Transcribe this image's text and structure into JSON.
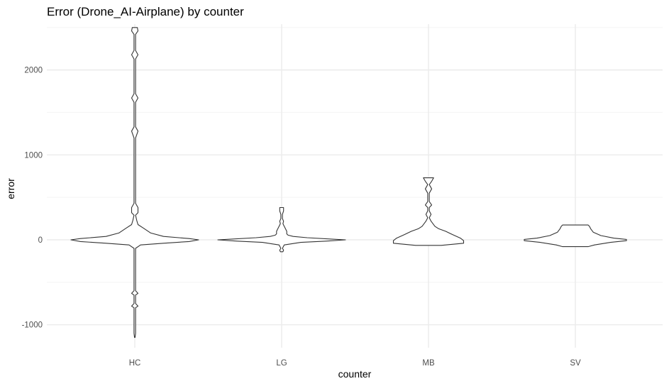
{
  "chart_data": {
    "type": "violin",
    "title": "Error (Drone_AI-Airplane) by counter",
    "xlabel": "counter",
    "ylabel": "error",
    "categories": [
      "HC",
      "LG",
      "MB",
      "SV"
    ],
    "ylim": [
      -1270,
      2540
    ],
    "yticks": [
      -1000,
      0,
      1000,
      2000
    ],
    "yticklabels": [
      "-1000",
      "0",
      "1000",
      "2000"
    ],
    "grid": true,
    "legend": "none",
    "colors": {
      "outline": "#333333",
      "fill": "#ffffff",
      "grid_major": "#ebebeb",
      "grid_minor": "#f5f5f5",
      "tick_text": "#4d4d4d"
    },
    "violins": [
      {
        "category": "HC",
        "min": -1150,
        "max": 2500,
        "profile": [
          [
            -1150,
            0.005
          ],
          [
            -1100,
            0.012
          ],
          [
            -1000,
            0.012
          ],
          [
            -800,
            0.012
          ],
          [
            -780,
            0.05
          ],
          [
            -750,
            0.012
          ],
          [
            -650,
            0.012
          ],
          [
            -630,
            0.05
          ],
          [
            -600,
            0.012
          ],
          [
            -100,
            0.012
          ],
          [
            -60,
            0.09
          ],
          [
            -40,
            0.45
          ],
          [
            -20,
            0.85
          ],
          [
            0,
            1.0
          ],
          [
            15,
            0.85
          ],
          [
            40,
            0.45
          ],
          [
            80,
            0.25
          ],
          [
            140,
            0.13
          ],
          [
            180,
            0.05
          ],
          [
            230,
            0.03
          ],
          [
            290,
            0.012
          ],
          [
            320,
            0.05
          ],
          [
            380,
            0.05
          ],
          [
            430,
            0.012
          ],
          [
            1200,
            0.012
          ],
          [
            1280,
            0.05
          ],
          [
            1330,
            0.012
          ],
          [
            1620,
            0.012
          ],
          [
            1670,
            0.05
          ],
          [
            1720,
            0.012
          ],
          [
            2130,
            0.012
          ],
          [
            2180,
            0.05
          ],
          [
            2230,
            0.012
          ],
          [
            2420,
            0.012
          ],
          [
            2460,
            0.05
          ],
          [
            2500,
            0.04
          ]
        ]
      },
      {
        "category": "LG",
        "min": -140,
        "max": 380,
        "profile": [
          [
            -140,
            0.02
          ],
          [
            -120,
            0.03
          ],
          [
            -100,
            0.012
          ],
          [
            -60,
            0.04
          ],
          [
            -30,
            0.3
          ],
          [
            -15,
            0.7
          ],
          [
            0,
            1.0
          ],
          [
            10,
            0.75
          ],
          [
            25,
            0.4
          ],
          [
            40,
            0.18
          ],
          [
            55,
            0.1
          ],
          [
            70,
            0.08
          ],
          [
            100,
            0.08
          ],
          [
            130,
            0.06
          ],
          [
            160,
            0.04
          ],
          [
            190,
            0.02
          ],
          [
            220,
            0.03
          ],
          [
            250,
            0.012
          ],
          [
            300,
            0.012
          ],
          [
            340,
            0.03
          ],
          [
            380,
            0.03
          ]
        ]
      },
      {
        "category": "MB",
        "min": -65,
        "max": 730,
        "profile": [
          [
            -65,
            0.2
          ],
          [
            -40,
            0.55
          ],
          [
            -10,
            0.55
          ],
          [
            20,
            0.5
          ],
          [
            60,
            0.38
          ],
          [
            100,
            0.27
          ],
          [
            130,
            0.16
          ],
          [
            160,
            0.1
          ],
          [
            190,
            0.07
          ],
          [
            220,
            0.04
          ],
          [
            260,
            0.012
          ],
          [
            300,
            0.04
          ],
          [
            340,
            0.012
          ],
          [
            380,
            0.012
          ],
          [
            410,
            0.05
          ],
          [
            450,
            0.012
          ],
          [
            550,
            0.012
          ],
          [
            600,
            0.05
          ],
          [
            650,
            0.012
          ],
          [
            690,
            0.05
          ],
          [
            730,
            0.08
          ]
        ]
      },
      {
        "category": "SV",
        "min": -80,
        "max": 175,
        "profile": [
          [
            -80,
            0.2
          ],
          [
            -60,
            0.3
          ],
          [
            -30,
            0.55
          ],
          [
            -10,
            0.8
          ],
          [
            5,
            0.8
          ],
          [
            20,
            0.6
          ],
          [
            50,
            0.4
          ],
          [
            90,
            0.28
          ],
          [
            130,
            0.24
          ],
          [
            160,
            0.22
          ],
          [
            175,
            0.2
          ]
        ]
      }
    ]
  }
}
